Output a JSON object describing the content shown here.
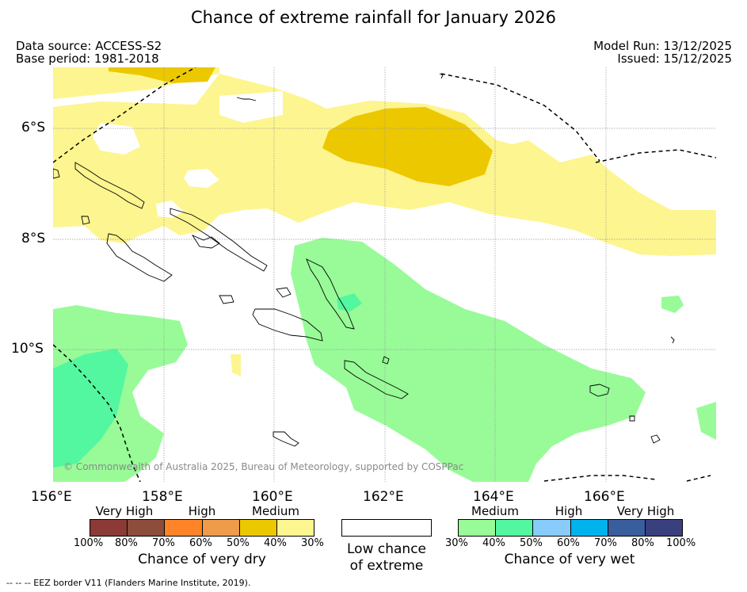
{
  "title": "Chance of extreme rainfall for January 2026",
  "source": {
    "label": "Data source: ACCESS-S2",
    "base_period": "Base period: 1981-2018"
  },
  "run": {
    "model_run": "Model Run: 13/12/2025",
    "issued": "Issued: 15/12/2025"
  },
  "axes": {
    "lat": [
      "6°S",
      "8°S",
      "10°S"
    ],
    "lon": [
      "156°E",
      "158°E",
      "160°E",
      "162°E",
      "164°E",
      "166°E"
    ],
    "extent": {
      "lon_min": 156,
      "lon_max": 168,
      "lat_min": -12.5,
      "lat_max": -5
    }
  },
  "copyright": "© Commonwealth of Australia 2025, Bureau of Meteorology, supported by COSPPac",
  "legend": {
    "dry": {
      "categories": [
        "Very High",
        "High",
        "Medium"
      ],
      "colors": [
        "#8b3a36",
        "#8c4d3b",
        "#ff8428",
        "#ee9b4a",
        "#ecc800",
        "#fdf58f"
      ],
      "ticks": [
        "100%",
        "80%",
        "70%",
        "60%",
        "50%",
        "40%",
        "30%"
      ],
      "title": "Chance of very dry"
    },
    "neutral": {
      "line1": "Low chance",
      "line2": "of extreme"
    },
    "wet": {
      "categories": [
        "Medium",
        "High",
        "Very High"
      ],
      "colors": [
        "#98fb98",
        "#52f7a0",
        "#87ccfa",
        "#00b2ee",
        "#385e9d",
        "#3a3f7e"
      ],
      "ticks": [
        "30%",
        "40%",
        "50%",
        "60%",
        "70%",
        "80%",
        "100%"
      ],
      "title": "Chance of very wet"
    }
  },
  "footer": "--  --  -- EEZ border V11 (Flanders Marine Institute, 2019)."
}
